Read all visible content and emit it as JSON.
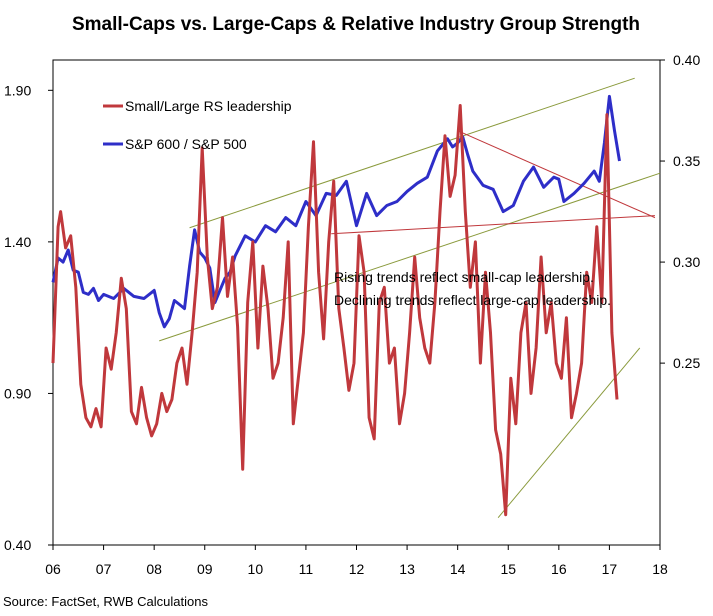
{
  "chart_data": {
    "type": "line",
    "title": "Small-Caps vs. Large-Caps & Relative Industry Group Strength",
    "source": "Source: FactSet, RWB Calculations",
    "x_ticks": [
      "06",
      "07",
      "08",
      "09",
      "10",
      "11",
      "12",
      "13",
      "14",
      "15",
      "16",
      "17",
      "18"
    ],
    "x_range": [
      2006,
      2018
    ],
    "right_axis": {
      "ticks": [
        "0.40",
        "0.35",
        "0.30",
        "0.25"
      ],
      "tick_values": [
        0.4,
        0.35,
        0.3,
        0.25
      ],
      "range": [
        0.16,
        0.4
      ]
    },
    "left_axis": {
      "ticks": [
        "1.90",
        "1.40",
        "0.90",
        "0.40"
      ],
      "tick_values": [
        1.9,
        1.4,
        0.9,
        0.4
      ],
      "range": [
        0.4,
        2.0
      ]
    },
    "legend": [
      {
        "label": "Small/Large RS leadership",
        "color": "#C0383C"
      },
      {
        "label": "S&P 600 / S&P 500",
        "color": "#2E2EC8"
      }
    ],
    "annotations": [
      "Rising trends reflect small-cap leadership.",
      "Declining trends reflect large-cap leadership."
    ],
    "series": [
      {
        "label_ref": 1,
        "axis": "right",
        "color": "#2E2EC8",
        "x": [
          2006.0,
          2006.1,
          2006.2,
          2006.3,
          2006.4,
          2006.5,
          2006.6,
          2006.7,
          2006.8,
          2006.9,
          2007.0,
          2007.2,
          2007.4,
          2007.6,
          2007.8,
          2008.0,
          2008.1,
          2008.2,
          2008.3,
          2008.4,
          2008.5,
          2008.6,
          2008.7,
          2008.8,
          2008.9,
          2009.0,
          2009.1,
          2009.2,
          2009.3,
          2009.4,
          2009.5,
          2009.6,
          2009.8,
          2010.0,
          2010.2,
          2010.4,
          2010.6,
          2010.8,
          2011.0,
          2011.2,
          2011.4,
          2011.6,
          2011.8,
          2012.0,
          2012.2,
          2012.4,
          2012.6,
          2012.8,
          2013.0,
          2013.2,
          2013.4,
          2013.6,
          2013.8,
          2013.9,
          2014.0,
          2014.1,
          2014.2,
          2014.3,
          2014.5,
          2014.7,
          2014.9,
          2015.1,
          2015.3,
          2015.5,
          2015.7,
          2015.9,
          2016.0,
          2016.1,
          2016.3,
          2016.5,
          2016.7,
          2016.8,
          2016.9,
          2017.0,
          2017.1,
          2017.2
        ],
        "y": [
          0.29,
          0.302,
          0.3,
          0.306,
          0.296,
          0.295,
          0.285,
          0.284,
          0.287,
          0.281,
          0.284,
          0.282,
          0.287,
          0.283,
          0.282,
          0.286,
          0.275,
          0.268,
          0.272,
          0.281,
          0.279,
          0.277,
          0.298,
          0.316,
          0.305,
          0.302,
          0.297,
          0.28,
          0.286,
          0.292,
          0.295,
          0.303,
          0.313,
          0.31,
          0.318,
          0.315,
          0.322,
          0.318,
          0.33,
          0.323,
          0.334,
          0.333,
          0.34,
          0.318,
          0.334,
          0.323,
          0.328,
          0.33,
          0.335,
          0.339,
          0.342,
          0.355,
          0.361,
          0.357,
          0.359,
          0.362,
          0.353,
          0.345,
          0.338,
          0.336,
          0.325,
          0.328,
          0.34,
          0.347,
          0.337,
          0.342,
          0.341,
          0.33,
          0.334,
          0.339,
          0.345,
          0.34,
          0.359,
          0.382,
          0.365,
          0.35
        ]
      },
      {
        "label_ref": 0,
        "axis": "left",
        "color": "#C0383C",
        "x": [
          2006.0,
          2006.1,
          2006.15,
          2006.25,
          2006.35,
          2006.45,
          2006.55,
          2006.65,
          2006.75,
          2006.85,
          2006.95,
          2007.05,
          2007.15,
          2007.25,
          2007.35,
          2007.45,
          2007.55,
          2007.65,
          2007.75,
          2007.85,
          2007.95,
          2008.05,
          2008.15,
          2008.25,
          2008.35,
          2008.45,
          2008.55,
          2008.65,
          2008.75,
          2008.85,
          2008.95,
          2009.05,
          2009.15,
          2009.25,
          2009.35,
          2009.45,
          2009.55,
          2009.65,
          2009.75,
          2009.85,
          2009.95,
          2010.05,
          2010.15,
          2010.25,
          2010.35,
          2010.45,
          2010.55,
          2010.65,
          2010.75,
          2010.85,
          2010.95,
          2011.05,
          2011.15,
          2011.25,
          2011.35,
          2011.45,
          2011.55,
          2011.65,
          2011.75,
          2011.85,
          2011.95,
          2012.05,
          2012.15,
          2012.25,
          2012.35,
          2012.45,
          2012.55,
          2012.65,
          2012.75,
          2012.85,
          2012.95,
          2013.05,
          2013.15,
          2013.25,
          2013.35,
          2013.45,
          2013.55,
          2013.65,
          2013.75,
          2013.85,
          2013.95,
          2014.05,
          2014.15,
          2014.25,
          2014.35,
          2014.45,
          2014.55,
          2014.65,
          2014.75,
          2014.85,
          2014.95,
          2015.05,
          2015.15,
          2015.25,
          2015.35,
          2015.45,
          2015.55,
          2015.65,
          2015.75,
          2015.85,
          2015.95,
          2016.05,
          2016.15,
          2016.25,
          2016.35,
          2016.45,
          2016.55,
          2016.65,
          2016.75,
          2016.85,
          2016.95,
          2017.05,
          2017.15
        ],
        "y": [
          1.0,
          1.45,
          1.5,
          1.38,
          1.42,
          1.25,
          0.93,
          0.82,
          0.79,
          0.85,
          0.79,
          1.05,
          0.98,
          1.1,
          1.28,
          1.18,
          0.84,
          0.8,
          0.92,
          0.82,
          0.76,
          0.8,
          0.9,
          0.84,
          0.88,
          1.0,
          1.05,
          0.93,
          1.1,
          1.3,
          1.71,
          1.35,
          1.18,
          1.25,
          1.48,
          1.22,
          1.35,
          1.12,
          0.65,
          1.2,
          1.4,
          1.05,
          1.32,
          1.18,
          0.95,
          1.0,
          1.15,
          1.4,
          0.8,
          0.95,
          1.1,
          1.45,
          1.73,
          1.3,
          1.08,
          1.4,
          1.6,
          1.18,
          1.05,
          0.91,
          1.0,
          1.42,
          1.3,
          0.82,
          0.75,
          1.2,
          1.25,
          1.0,
          1.05,
          0.8,
          0.9,
          1.1,
          1.35,
          1.15,
          1.05,
          1.0,
          1.2,
          1.5,
          1.75,
          1.55,
          1.62,
          1.85,
          1.5,
          1.25,
          1.4,
          1.0,
          1.3,
          1.1,
          0.78,
          0.7,
          0.5,
          0.95,
          0.8,
          1.1,
          1.2,
          0.9,
          1.05,
          1.35,
          1.1,
          1.2,
          1.0,
          0.95,
          1.15,
          0.82,
          0.9,
          1.0,
          1.3,
          1.2,
          1.45,
          1.2,
          1.82,
          1.1,
          0.88
        ]
      }
    ],
    "trendlines": [
      {
        "color": "#8A9A3C",
        "axis": "right",
        "x": [
          2008.7,
          2017.5
        ],
        "y": [
          0.317,
          0.391
        ]
      },
      {
        "color": "#8A9A3C",
        "axis": "right",
        "x": [
          2008.1,
          2018.0
        ],
        "y": [
          0.261,
          0.344
        ]
      },
      {
        "color": "#C0383C",
        "axis": "right",
        "x": [
          2011.5,
          2017.9
        ],
        "y": [
          0.314,
          0.323
        ]
      },
      {
        "color": "#C0383C",
        "axis": "right",
        "x": [
          2014.0,
          2017.9
        ],
        "y": [
          0.365,
          0.322
        ]
      },
      {
        "color": "#8A9A3C",
        "axis": "left",
        "x": [
          2014.8,
          2017.6
        ],
        "y": [
          0.49,
          1.05
        ]
      }
    ]
  }
}
